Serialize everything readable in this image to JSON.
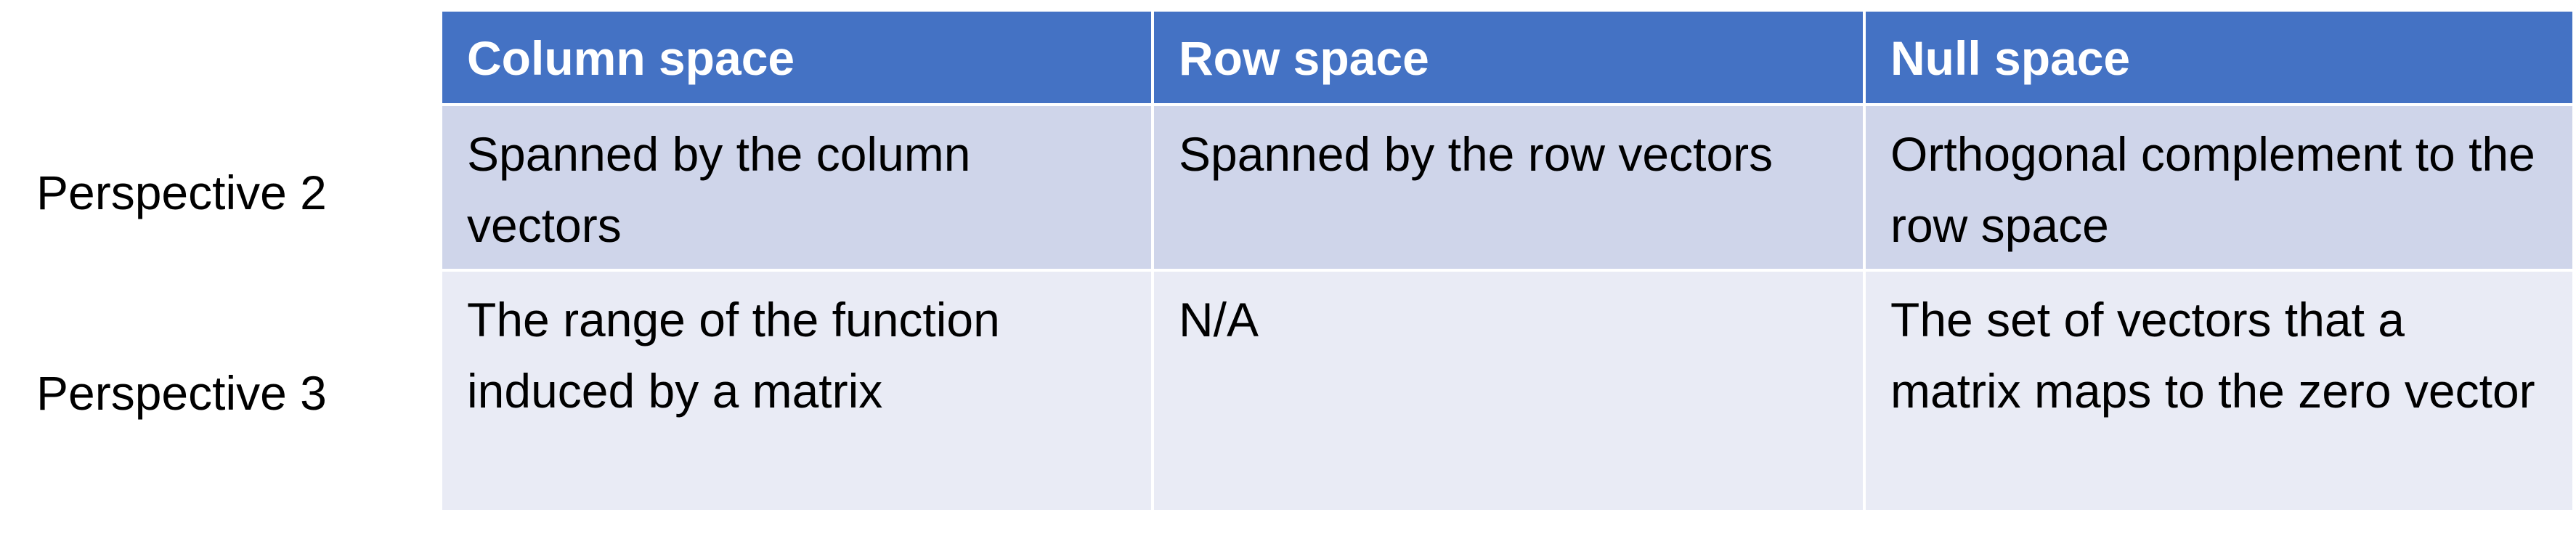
{
  "table": {
    "columns": [
      "Column space",
      "Row space",
      "Null space"
    ],
    "rows": [
      {
        "label": "Perspective 2",
        "cells": [
          "Spanned by the column vectors",
          "Spanned by the row vectors",
          "Orthogonal complement to the row space"
        ]
      },
      {
        "label": "Perspective 3",
        "cells": [
          "The range of the function induced by a matrix",
          "N/A",
          "The set of vectors that a matrix maps to the zero vector"
        ]
      }
    ]
  },
  "colors": {
    "header_bg": "#4472c4",
    "header_text": "#ffffff",
    "row_odd_bg": "#cfd5ea",
    "row_even_bg": "#e9ebf5",
    "body_text": "#000000"
  }
}
